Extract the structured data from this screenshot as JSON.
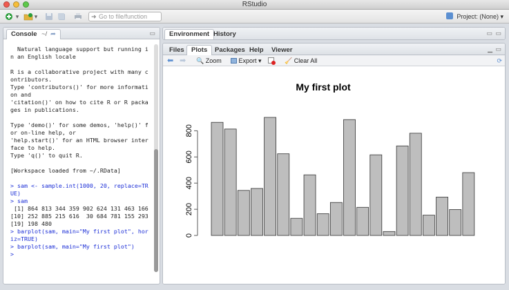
{
  "window": {
    "title": "RStudio"
  },
  "toolbar": {
    "goto_placeholder": "Go to file/function",
    "project_label": "Project: (None)"
  },
  "console": {
    "tab_label": "Console",
    "path": "~/",
    "lines": [
      {
        "type": "out",
        "text": "  Natural language support but running i"
      },
      {
        "type": "out",
        "text": "n an English locale"
      },
      {
        "type": "out",
        "text": ""
      },
      {
        "type": "out",
        "text": "R is a collaborative project with many c"
      },
      {
        "type": "out",
        "text": "ontributors."
      },
      {
        "type": "out",
        "text": "Type 'contributors()' for more informati"
      },
      {
        "type": "out",
        "text": "on and"
      },
      {
        "type": "out",
        "text": "'citation()' on how to cite R or R packa"
      },
      {
        "type": "out",
        "text": "ges in publications."
      },
      {
        "type": "out",
        "text": ""
      },
      {
        "type": "out",
        "text": "Type 'demo()' for some demos, 'help()' f"
      },
      {
        "type": "out",
        "text": "or on-line help, or"
      },
      {
        "type": "out",
        "text": "'help.start()' for an HTML browser inter"
      },
      {
        "type": "out",
        "text": "face to help."
      },
      {
        "type": "out",
        "text": "Type 'q()' to quit R."
      },
      {
        "type": "out",
        "text": ""
      },
      {
        "type": "out",
        "text": "[Workspace loaded from ~/.RData]"
      },
      {
        "type": "out",
        "text": ""
      },
      {
        "type": "cmd",
        "text": "> sam <- sample.int(1000, 20, replace=TR"
      },
      {
        "type": "cmd",
        "text": "UE)"
      },
      {
        "type": "cmd",
        "text": "> sam"
      },
      {
        "type": "out",
        "text": " [1] 864 813 344 359 902 624 131 463 166"
      },
      {
        "type": "out",
        "text": "[10] 252 885 215 616  30 684 781 155 293"
      },
      {
        "type": "out",
        "text": "[19] 198 480"
      },
      {
        "type": "cmd",
        "text": "> barplot(sam, main=\"My first plot\", hor"
      },
      {
        "type": "cmd",
        "text": "iz=TRUE)"
      },
      {
        "type": "cmd",
        "text": "> barplot(sam, main=\"My first plot\")"
      },
      {
        "type": "cmd",
        "text": ">"
      }
    ]
  },
  "env_pane": {
    "tabs": [
      "Environment",
      "History"
    ]
  },
  "files_pane": {
    "tabs": [
      "Files",
      "Plots",
      "Packages",
      "Help",
      "Viewer"
    ],
    "active_tab": 1,
    "toolbar": {
      "zoom": "Zoom",
      "export": "Export",
      "clear_all": "Clear All"
    }
  },
  "chart_data": {
    "type": "bar",
    "title": "My first plot",
    "xlabel": "",
    "ylabel": "",
    "values": [
      864,
      813,
      344,
      359,
      902,
      624,
      131,
      463,
      166,
      252,
      885,
      215,
      616,
      30,
      684,
      781,
      155,
      293,
      198,
      480
    ],
    "yticks": [
      0,
      200,
      400,
      600,
      800
    ],
    "ylim": [
      0,
      960
    ],
    "bar_color": "#bebebe",
    "grid": false
  },
  "colors": {
    "command": "#1a2dd6",
    "bar": "#bebebe"
  }
}
